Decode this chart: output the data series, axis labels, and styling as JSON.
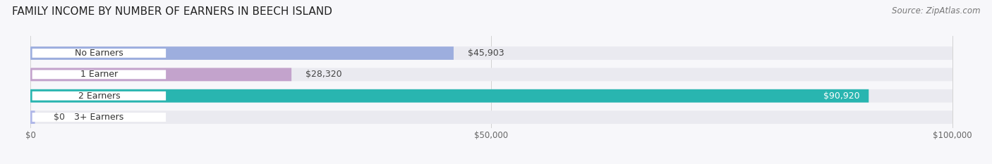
{
  "title": "FAMILY INCOME BY NUMBER OF EARNERS IN BEECH ISLAND",
  "source": "Source: ZipAtlas.com",
  "categories": [
    "No Earners",
    "1 Earner",
    "2 Earners",
    "3+ Earners"
  ],
  "values": [
    45903,
    28320,
    90920,
    0
  ],
  "display_values": [
    45903,
    28320,
    90920,
    500
  ],
  "bar_colors": [
    "#9daede",
    "#c3a3cc",
    "#29b5b0",
    "#b0b8e8"
  ],
  "bar_bg_color": "#eaeaf0",
  "value_labels": [
    "$45,903",
    "$28,320",
    "$90,920",
    "$0"
  ],
  "xlim_max": 100000,
  "xticks": [
    0,
    50000,
    100000
  ],
  "xtick_labels": [
    "$0",
    "$50,000",
    "$100,000"
  ],
  "background_color": "#f7f7fa",
  "title_fontsize": 11,
  "source_fontsize": 8.5,
  "label_fontsize": 9,
  "value_fontsize": 9
}
